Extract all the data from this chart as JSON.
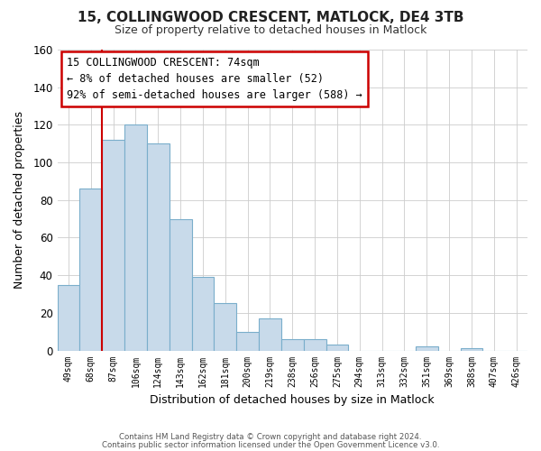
{
  "title": "15, COLLINGWOOD CRESCENT, MATLOCK, DE4 3TB",
  "subtitle": "Size of property relative to detached houses in Matlock",
  "xlabel": "Distribution of detached houses by size in Matlock",
  "ylabel": "Number of detached properties",
  "bar_labels": [
    "49sqm",
    "68sqm",
    "87sqm",
    "106sqm",
    "124sqm",
    "143sqm",
    "162sqm",
    "181sqm",
    "200sqm",
    "219sqm",
    "238sqm",
    "256sqm",
    "275sqm",
    "294sqm",
    "313sqm",
    "332sqm",
    "351sqm",
    "369sqm",
    "388sqm",
    "407sqm",
    "426sqm"
  ],
  "bar_heights": [
    35,
    86,
    112,
    120,
    110,
    70,
    39,
    25,
    10,
    17,
    6,
    6,
    3,
    0,
    0,
    0,
    2,
    0,
    1,
    0,
    0
  ],
  "bar_color": "#c8daea",
  "bar_edge_color": "#7aaecb",
  "highlight_color": "#cc0000",
  "ylim": [
    0,
    160
  ],
  "yticks": [
    0,
    20,
    40,
    60,
    80,
    100,
    120,
    140,
    160
  ],
  "annotation_title": "15 COLLINGWOOD CRESCENT: 74sqm",
  "annotation_line1": "← 8% of detached houses are smaller (52)",
  "annotation_line2": "92% of semi-detached houses are larger (588) →",
  "annotation_box_color": "#ffffff",
  "annotation_box_edge": "#cc0000",
  "footer1": "Contains HM Land Registry data © Crown copyright and database right 2024.",
  "footer2": "Contains public sector information licensed under the Open Government Licence v3.0.",
  "background_color": "#ffffff",
  "grid_color": "#cccccc"
}
